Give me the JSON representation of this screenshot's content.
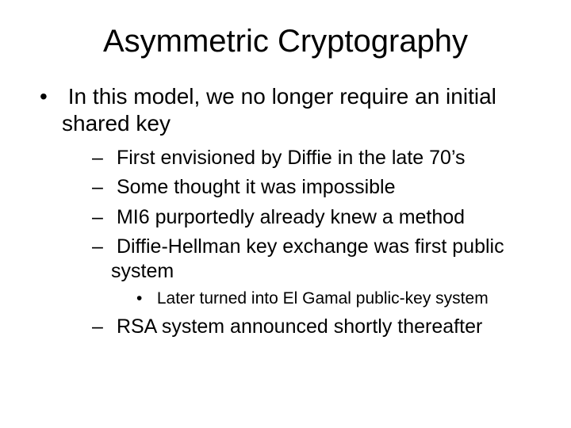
{
  "slide": {
    "title": "Asymmetric Cryptography",
    "bullets": [
      {
        "text": "In this model, we no longer require an initial shared key",
        "sub": [
          {
            "text": "First envisioned by Diffie in the late 70’s"
          },
          {
            "text": "Some thought it was impossible"
          },
          {
            "text": "MI6 purportedly already knew a method"
          },
          {
            "text": "Diffie-Hellman key exchange was first public system",
            "sub": [
              {
                "text": "Later turned into El Gamal public-key system"
              }
            ]
          },
          {
            "text": "RSA system announced shortly thereafter"
          }
        ]
      }
    ]
  },
  "style": {
    "background_color": "#ffffff",
    "text_color": "#000000",
    "font_family": "Arial",
    "title_fontsize": 40,
    "level1_fontsize": 28,
    "level2_fontsize": 25,
    "level3_fontsize": 21,
    "slide_width": 720,
    "slide_height": 540
  }
}
